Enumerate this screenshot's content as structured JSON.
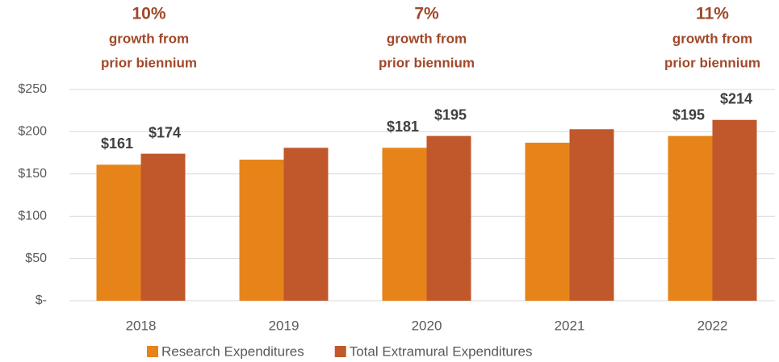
{
  "chart_data": {
    "type": "bar",
    "categories": [
      "2018",
      "2019",
      "2020",
      "2021",
      "2022"
    ],
    "series": [
      {
        "name": "Research Expenditures",
        "color": "#e6841a",
        "values": [
          161,
          167,
          181,
          187,
          195
        ],
        "value_labels": [
          "$161",
          null,
          "$181",
          null,
          "$195"
        ]
      },
      {
        "name": "Total Extramural Expenditures",
        "color": "#c0582c",
        "values": [
          174,
          181,
          195,
          203,
          214
        ],
        "value_labels": [
          "$174",
          null,
          "$195",
          null,
          "$214"
        ]
      }
    ],
    "ylim": [
      0,
      250
    ],
    "yticks": [
      {
        "value": 0,
        "label": "$-"
      },
      {
        "value": 50,
        "label": "$50"
      },
      {
        "value": 100,
        "label": "$100"
      },
      {
        "value": 150,
        "label": "$150"
      },
      {
        "value": 200,
        "label": "$200"
      },
      {
        "value": 250,
        "label": "$250"
      }
    ],
    "grid": true,
    "legend": "bottom",
    "annotations": [
      {
        "text": "10%",
        "lines": [
          "growth from",
          "prior biennium"
        ]
      },
      {
        "text": "7%",
        "lines": [
          "growth from",
          "prior biennium"
        ]
      },
      {
        "text": "11%",
        "lines": [
          "growth from",
          "prior biennium"
        ]
      }
    ]
  }
}
